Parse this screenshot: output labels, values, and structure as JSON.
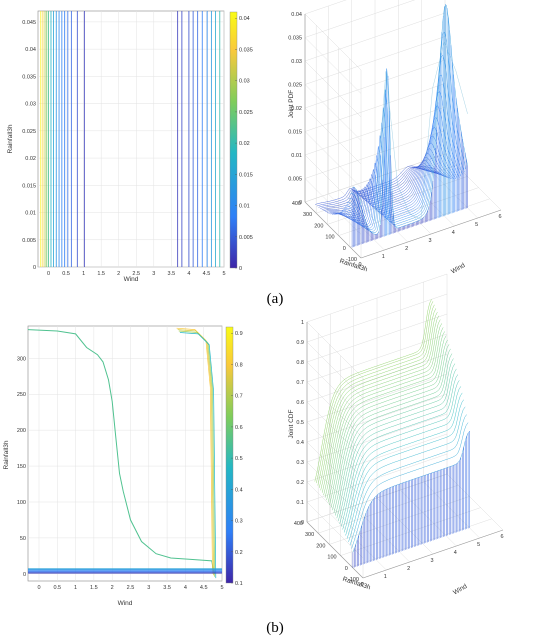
{
  "panels": {
    "a": "(a)",
    "b": "(b)"
  },
  "chart_data": [
    {
      "type": "contour",
      "panel": "a",
      "xlabel": "Wind",
      "ylabel": "Rainfall3h",
      "xlim": [
        -0.3,
        5
      ],
      "ylim": [
        0,
        0.047
      ],
      "x_ticks": [
        "0",
        "0.5",
        "1",
        "1.5",
        "2",
        "2.5",
        "3",
        "3.5",
        "4",
        "4.5",
        "5"
      ],
      "y_ticks": [
        "0",
        "0.005",
        "0.01",
        "0.015",
        "0.02",
        "0.025",
        "0.03",
        "0.035",
        "0.04",
        "0.045"
      ],
      "colorbar": {
        "lim": [
          0,
          0.041
        ],
        "ticks": [
          "0",
          "0.005",
          "0.01",
          "0.015",
          "0.02",
          "0.025",
          "0.03",
          "0.035",
          "0.04"
        ],
        "colors": [
          "#3e26a8",
          "#2f7ff7",
          "#23b7c4",
          "#7fcd5b",
          "#f9c93c",
          "#f9fb15"
        ]
      },
      "contour_lines": [
        {
          "x": -0.22,
          "level": 0.04
        },
        {
          "x": -0.16,
          "level": 0.036
        },
        {
          "x": -0.1,
          "level": 0.03
        },
        {
          "x": -0.05,
          "level": 0.026
        },
        {
          "x": 0.0,
          "level": 0.022
        },
        {
          "x": 0.07,
          "level": 0.018
        },
        {
          "x": 0.14,
          "level": 0.015
        },
        {
          "x": 0.22,
          "level": 0.012
        },
        {
          "x": 0.3,
          "level": 0.01
        },
        {
          "x": 0.38,
          "level": 0.009
        },
        {
          "x": 0.46,
          "level": 0.008
        },
        {
          "x": 0.55,
          "level": 0.007
        },
        {
          "x": 0.65,
          "level": 0.006
        },
        {
          "x": 0.82,
          "level": 0.004
        },
        {
          "x": 1.02,
          "level": 0.002
        },
        {
          "x": 3.68,
          "level": 0.002
        },
        {
          "x": 3.8,
          "level": 0.003
        },
        {
          "x": 4.0,
          "level": 0.004
        },
        {
          "x": 4.12,
          "level": 0.005
        },
        {
          "x": 4.25,
          "level": 0.006
        },
        {
          "x": 4.38,
          "level": 0.008
        },
        {
          "x": 4.52,
          "level": 0.01
        },
        {
          "x": 4.64,
          "level": 0.013
        },
        {
          "x": 4.76,
          "level": 0.016
        },
        {
          "x": 4.88,
          "level": 0.02
        }
      ]
    },
    {
      "type": "surface3d",
      "panel": "a",
      "xlabel": "Wind",
      "ylabel": "Rainfall3h",
      "zlabel": "Joint PDF",
      "xlim": [
        0,
        6
      ],
      "ylim": [
        -100,
        400
      ],
      "zlim": [
        0,
        0.04
      ],
      "x_ticks": [
        "0",
        "1",
        "2",
        "3",
        "4",
        "5",
        "6"
      ],
      "y_ticks": [
        "-100",
        "0",
        "100",
        "200",
        "300",
        "400"
      ],
      "z_ticks": [
        "0",
        "0.005",
        "0.01",
        "0.015",
        "0.02",
        "0.025",
        "0.03",
        "0.035",
        "0.04"
      ],
      "ridge_x": [
        0,
        0.5,
        1.0,
        1.5,
        2.0,
        2.5,
        3.0,
        3.5,
        4.0,
        4.5,
        5.0
      ],
      "ridge_z": [
        0.012,
        0.009,
        0.004,
        0.035,
        0.01,
        0.003,
        0.001,
        0.028,
        0.037,
        0.03,
        0.02
      ]
    },
    {
      "type": "contour",
      "panel": "b",
      "xlabel": "Wind",
      "ylabel": "Rainfall3h",
      "xlim": [
        -0.3,
        5
      ],
      "ylim": [
        -10,
        345
      ],
      "x_ticks": [
        "0",
        "0.5",
        "1",
        "1.5",
        "2",
        "2.5",
        "3",
        "3.5",
        "4",
        "4.5",
        "5"
      ],
      "y_ticks": [
        "0",
        "50",
        "100",
        "150",
        "200",
        "250",
        "300"
      ],
      "colorbar": {
        "lim": [
          0.1,
          0.92
        ],
        "ticks": [
          "0.1",
          "0.2",
          "0.3",
          "0.4",
          "0.5",
          "0.6",
          "0.7",
          "0.8",
          "0.9"
        ],
        "colors": [
          "#3e26a8",
          "#2f7ff7",
          "#23b7c4",
          "#7fcd5b",
          "#f9c93c",
          "#f9fb15"
        ]
      },
      "curve_level": 0.55,
      "curve_x": [
        -0.3,
        0.5,
        1.0,
        1.3,
        1.6,
        1.75,
        1.9,
        2.0,
        2.1,
        2.2,
        2.3,
        2.5,
        2.8,
        3.2,
        3.6,
        4.2,
        4.72,
        4.78
      ],
      "curve_y": [
        340,
        338,
        334,
        315,
        305,
        295,
        270,
        240,
        190,
        140,
        115,
        75,
        45,
        28,
        22,
        20,
        18,
        0
      ],
      "right_curve_x": [
        3.8,
        4.3,
        4.6,
        4.72,
        4.78
      ],
      "right_curve_y": [
        342,
        340,
        325,
        260,
        0
      ]
    },
    {
      "type": "surface3d",
      "panel": "b",
      "xlabel": "Wind",
      "ylabel": "Rainfall3h",
      "zlabel": "Joint CDF",
      "xlim": [
        0,
        6
      ],
      "ylim": [
        -100,
        400
      ],
      "zlim": [
        0,
        1
      ],
      "x_ticks": [
        "0",
        "1",
        "2",
        "3",
        "4",
        "5",
        "6"
      ],
      "y_ticks": [
        "-100",
        "0",
        "100",
        "200",
        "300",
        "400"
      ],
      "z_ticks": [
        "0",
        "0.1",
        "0.2",
        "0.3",
        "0.4",
        "0.5",
        "0.6",
        "0.7",
        "0.8",
        "0.9",
        "1"
      ]
    }
  ]
}
